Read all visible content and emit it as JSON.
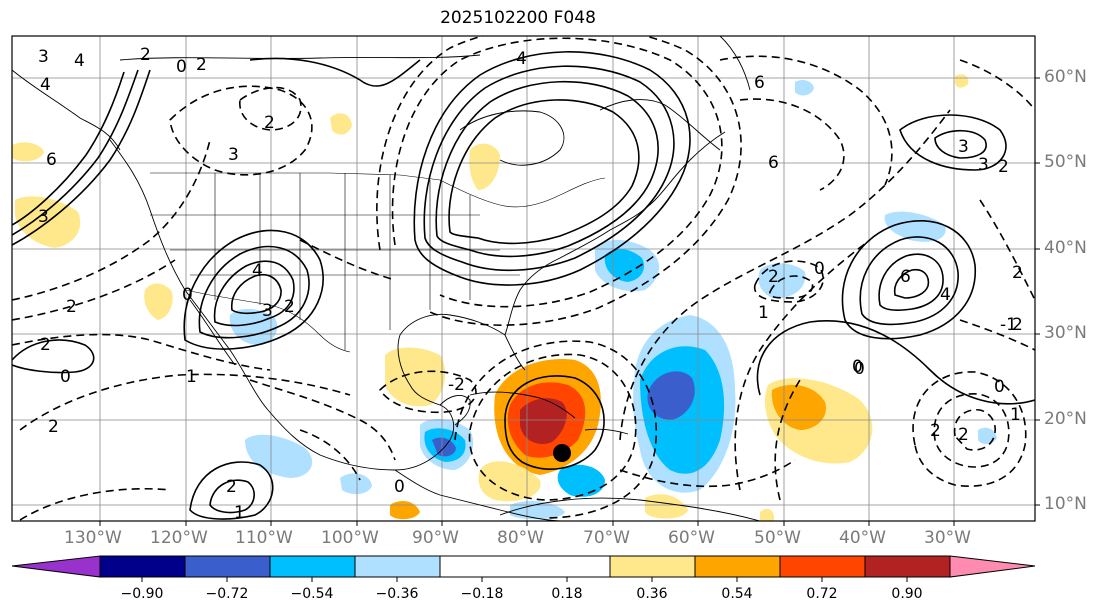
{
  "title": "2025102200 F048",
  "longitude_labels": [
    "130°W",
    "120°W",
    "110°W",
    "100°W",
    "90°W",
    "80°W",
    "70°W",
    "60°W",
    "50°W",
    "40°W",
    "30°W"
  ],
  "latitude_labels": [
    "60°N",
    "50°N",
    "40°N",
    "30°N",
    "20°N",
    "10°N"
  ],
  "colorbar": {
    "ticks": [
      "−0.90",
      "−0.72",
      "−0.54",
      "−0.36",
      "−0.18",
      "0.18",
      "0.36",
      "0.54",
      "0.72",
      "0.90"
    ],
    "colors": [
      "#9932cc",
      "#00008b",
      "#3a5fcd",
      "#00bfff",
      "#b0e0ff",
      "#ffffff",
      "#ffe88c",
      "#ffa500",
      "#ff4500",
      "#b22222",
      "#ff8cb0"
    ]
  },
  "contour_labels": [
    "3",
    "4",
    "2",
    "0",
    "2",
    "4",
    "6",
    "3",
    "4",
    "3",
    "6",
    "2",
    "0",
    "2",
    "3",
    "2",
    "0",
    "1",
    "2",
    "2",
    "4",
    "1",
    "2",
    "0",
    "-2",
    "0",
    "1",
    "2",
    "-1",
    "0",
    "3",
    "2",
    "6",
    "4",
    "2",
    "3",
    "6",
    "2",
    "2",
    "0",
    "0",
    "1",
    "2"
  ],
  "storm_marker": "tropical system center"
}
